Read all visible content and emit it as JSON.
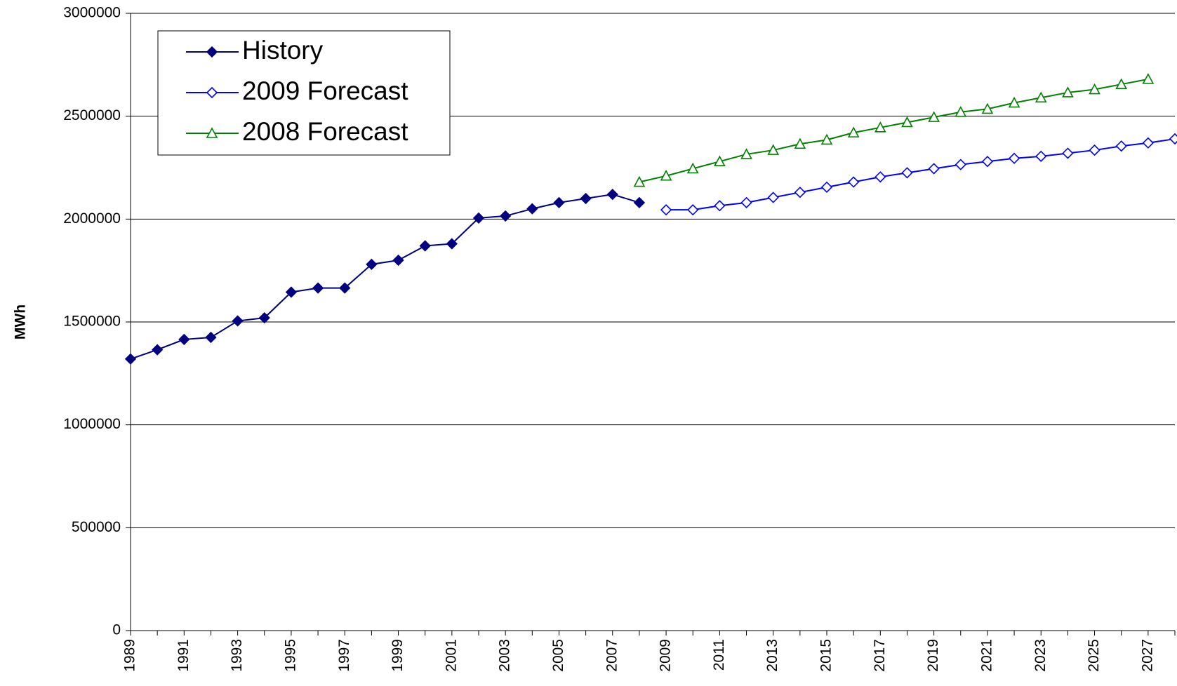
{
  "chart_data": {
    "type": "line",
    "ylabel": "MWh",
    "categories": [
      "1989",
      null,
      "1991",
      null,
      "1993",
      null,
      "1995",
      null,
      "1997",
      null,
      "1999",
      null,
      "2001",
      null,
      "2003",
      null,
      "2005",
      null,
      "2007",
      null,
      "2009",
      null,
      "2011",
      null,
      "2013",
      null,
      "2015",
      null,
      "2017",
      null,
      "2019",
      null,
      "2021",
      null,
      "2023",
      null,
      "2025",
      null,
      "2027",
      null
    ],
    "series": [
      {
        "name": "History",
        "color": "#000080",
        "marker": "diamond",
        "marker_filled": true,
        "values": [
          1320000,
          1365000,
          1415000,
          1425000,
          1505000,
          1520000,
          1645000,
          1665000,
          1665000,
          1780000,
          1800000,
          1870000,
          1880000,
          2005000,
          2015000,
          2050000,
          2080000,
          2100000,
          2120000,
          2080000,
          null,
          null,
          null,
          null,
          null,
          null,
          null,
          null,
          null,
          null,
          null,
          null,
          null,
          null,
          null,
          null,
          null,
          null,
          null,
          null
        ]
      },
      {
        "name": "2009 Forecast",
        "color": "#0000ff",
        "marker": "diamond",
        "marker_filled": false,
        "values": [
          null,
          null,
          null,
          null,
          null,
          null,
          null,
          null,
          null,
          null,
          null,
          null,
          null,
          null,
          null,
          null,
          null,
          null,
          null,
          null,
          2045000,
          2045000,
          2065000,
          2080000,
          2105000,
          2130000,
          2155000,
          2180000,
          2205000,
          2225000,
          2245000,
          2265000,
          2280000,
          2295000,
          2305000,
          2320000,
          2335000,
          2355000,
          2370000,
          2390000
        ]
      },
      {
        "name": "2008 Forecast",
        "color": "#008000",
        "marker": "triangle",
        "marker_filled": false,
        "values": [
          null,
          null,
          null,
          null,
          null,
          null,
          null,
          null,
          null,
          null,
          null,
          null,
          null,
          null,
          null,
          null,
          null,
          null,
          null,
          2180000,
          2210000,
          2245000,
          2280000,
          2315000,
          2335000,
          2365000,
          2385000,
          2420000,
          2445000,
          2470000,
          2495000,
          2520000,
          2535000,
          2565000,
          2590000,
          2615000,
          2630000,
          2655000,
          2680000,
          null
        ]
      }
    ],
    "ylim": [
      0,
      3000000
    ],
    "yticks": [
      0,
      500000,
      1000000,
      1500000,
      2000000,
      2500000,
      3000000
    ],
    "grid": true,
    "legend": "upper-left"
  }
}
